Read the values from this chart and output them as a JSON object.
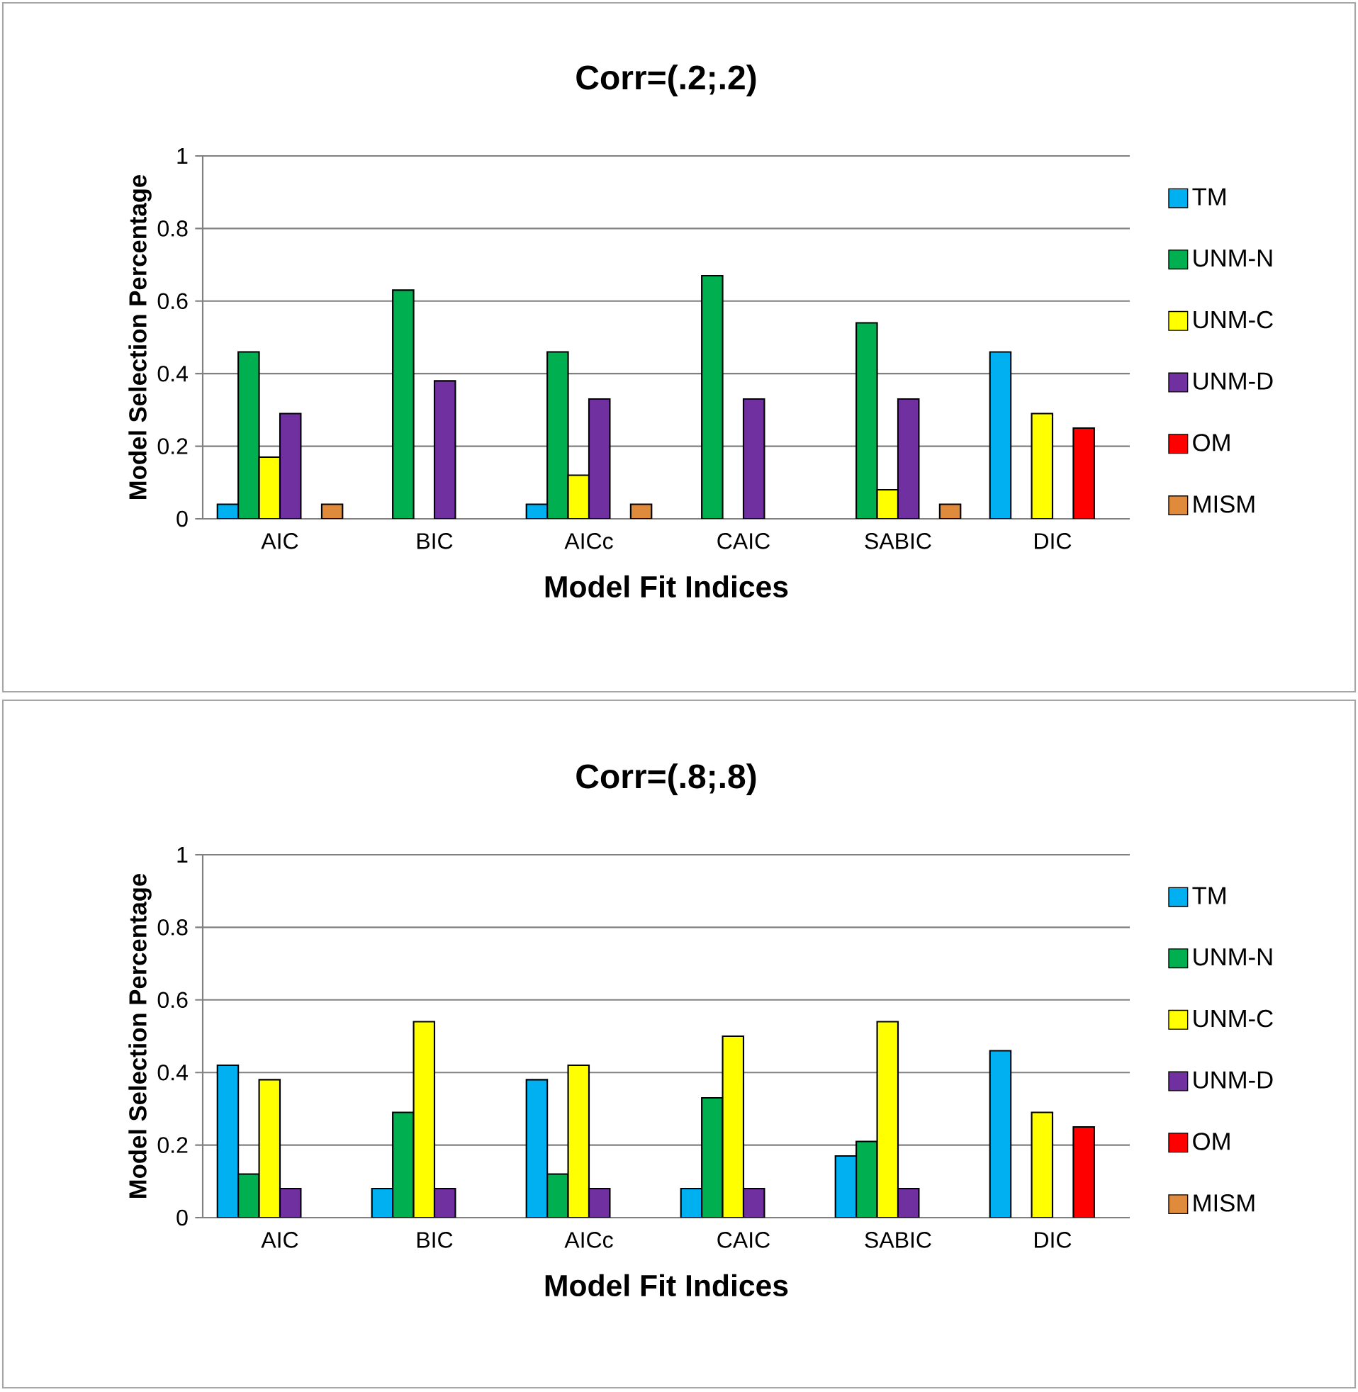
{
  "chart_data": [
    {
      "type": "bar",
      "title": "Corr=(.2;.2)",
      "xlabel": "Model Fit Indices",
      "ylabel": "Model Selection Percentage",
      "categories": [
        "AIC",
        "BIC",
        "AICc",
        "CAIC",
        "SABIC",
        "DIC"
      ],
      "ylim": [
        0,
        1
      ],
      "yticks": [
        0,
        0.2,
        0.4,
        0.6,
        0.8,
        1
      ],
      "grid": "y",
      "legend": "right",
      "series": [
        {
          "name": "TM",
          "color": "#00b0f0",
          "values": [
            0.04,
            null,
            0.04,
            null,
            null,
            0.46
          ]
        },
        {
          "name": "UNM-N",
          "color": "#00b050",
          "values": [
            0.46,
            0.63,
            0.46,
            0.67,
            0.54,
            null
          ]
        },
        {
          "name": "UNM-C",
          "color": "#ffff00",
          "values": [
            0.17,
            null,
            0.12,
            null,
            0.08,
            0.29
          ]
        },
        {
          "name": "UNM-D",
          "color": "#7030a0",
          "values": [
            0.29,
            0.38,
            0.33,
            0.33,
            0.33,
            null
          ]
        },
        {
          "name": "OM",
          "color": "#ff0000",
          "values": [
            null,
            null,
            null,
            null,
            null,
            0.25
          ]
        },
        {
          "name": "MISM",
          "color": "#e08a3c",
          "values": [
            0.04,
            null,
            0.04,
            null,
            0.04,
            null
          ]
        }
      ]
    },
    {
      "type": "bar",
      "title": "Corr=(.8;.8)",
      "xlabel": "Model Fit Indices",
      "ylabel": "Model Selection Percentage",
      "categories": [
        "AIC",
        "BIC",
        "AICc",
        "CAIC",
        "SABIC",
        "DIC"
      ],
      "ylim": [
        0,
        1
      ],
      "yticks": [
        0,
        0.2,
        0.4,
        0.6,
        0.8,
        1
      ],
      "grid": "y",
      "legend": "right",
      "series": [
        {
          "name": "TM",
          "color": "#00b0f0",
          "values": [
            0.42,
            0.08,
            0.38,
            0.08,
            0.17,
            0.46
          ]
        },
        {
          "name": "UNM-N",
          "color": "#00b050",
          "values": [
            0.12,
            0.29,
            0.12,
            0.33,
            0.21,
            null
          ]
        },
        {
          "name": "UNM-C",
          "color": "#ffff00",
          "values": [
            0.38,
            0.54,
            0.42,
            0.5,
            0.54,
            0.29
          ]
        },
        {
          "name": "UNM-D",
          "color": "#7030a0",
          "values": [
            0.08,
            0.08,
            0.08,
            0.08,
            0.08,
            null
          ]
        },
        {
          "name": "OM",
          "color": "#ff0000",
          "values": [
            null,
            null,
            null,
            null,
            null,
            0.25
          ]
        },
        {
          "name": "MISM",
          "color": "#e08a3c",
          "values": [
            null,
            null,
            null,
            null,
            null,
            null
          ]
        }
      ]
    }
  ]
}
